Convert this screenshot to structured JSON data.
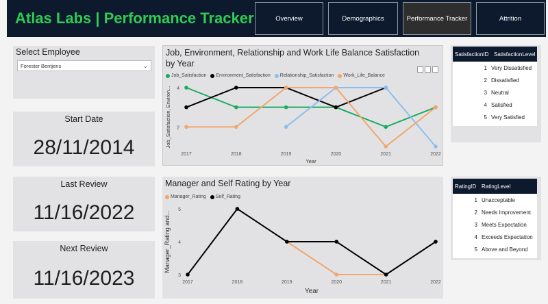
{
  "header": {
    "title": "Atlas Labs | Performance Tracker",
    "nav": [
      "Overview",
      "Demographics",
      "Performance Tracker",
      "Attrition"
    ],
    "active_nav": "Performance Tracker"
  },
  "employee": {
    "label": "Select Employee",
    "selected": "Forester Bentjens"
  },
  "dates": {
    "start_label": "Start Date",
    "start_value": "28/11/2014",
    "last_label": "Last Review",
    "last_value": "11/16/2022",
    "next_label": "Next Review",
    "next_value": "11/16/2023"
  },
  "colors": {
    "green": "#1aab61",
    "black": "#000000",
    "blue": "#89bff0",
    "orange": "#f2a66b"
  },
  "satisfaction_table": {
    "headers": [
      "SatisfactionID",
      "SatisfactionLevel"
    ],
    "rows": [
      [
        "1",
        "Very Dissatisfied"
      ],
      [
        "2",
        "Dissatisfied"
      ],
      [
        "3",
        "Neutral"
      ],
      [
        "4",
        "Satisfied"
      ],
      [
        "5",
        "Very Satisfied"
      ]
    ]
  },
  "rating_table": {
    "headers": [
      "RatingID",
      "RatingLevel"
    ],
    "rows": [
      [
        "1",
        "Unacceptable"
      ],
      [
        "2",
        "Needs Improvement"
      ],
      [
        "3",
        "Meets Expectation"
      ],
      [
        "4",
        "Exceeds Expectation"
      ],
      [
        "5",
        "Above and Beyond"
      ]
    ]
  },
  "chart_data": [
    {
      "type": "line",
      "title": "Job, Environment, Relationship and Work Life Balance Satisfaction by Year",
      "xlabel": "Year",
      "ylabel": "Job_Satisfaction, Environ...",
      "x": [
        "2017",
        "2018",
        "2019",
        "2020",
        "2021",
        "2022"
      ],
      "ylim": [
        1,
        4
      ],
      "yticks": [
        "2",
        "4"
      ],
      "series": [
        {
          "name": "Job_Satisfaction",
          "color": "#1aab61",
          "values": [
            4,
            3,
            3,
            3,
            2,
            3
          ]
        },
        {
          "name": "Environment_Satisfaction",
          "color": "#000000",
          "values": [
            3,
            4,
            4,
            3,
            4,
            null
          ]
        },
        {
          "name": "Relationship_Satisfaction",
          "color": "#89bff0",
          "values": [
            null,
            null,
            2,
            4,
            4,
            1
          ]
        },
        {
          "name": "Work_Life_Balance",
          "color": "#f2a66b",
          "values": [
            2,
            2,
            4,
            4,
            1,
            3
          ]
        }
      ]
    },
    {
      "type": "line",
      "title": "Manager and Self Rating by Year",
      "xlabel": "Year",
      "ylabel": "Manager_Rating and...",
      "x": [
        "2017",
        "2018",
        "2019",
        "2020",
        "2021",
        "2022"
      ],
      "ylim": [
        3,
        5
      ],
      "yticks": [
        "3",
        "4",
        "5"
      ],
      "series": [
        {
          "name": "Manager_Rating",
          "color": "#f2a66b",
          "values": [
            null,
            null,
            4,
            3,
            3,
            null
          ]
        },
        {
          "name": "Self_Rating",
          "color": "#000000",
          "values": [
            3,
            5,
            4,
            4,
            3,
            4
          ]
        }
      ]
    }
  ]
}
